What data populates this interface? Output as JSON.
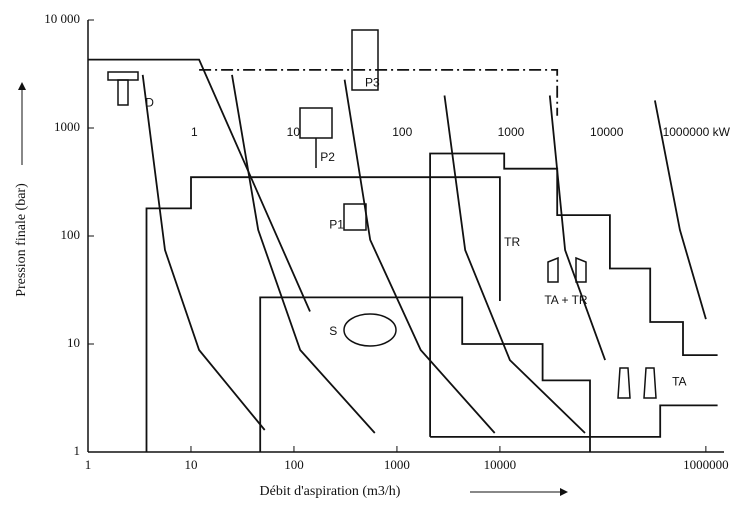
{
  "chart_data": {
    "type": "line",
    "log_x": true,
    "log_y": true,
    "x_label": "Débit d'aspiration (m3/h)",
    "y_label": "Pression finale (bar)",
    "xlim": [
      1,
      1500000
    ],
    "ylim": [
      1,
      10000
    ],
    "xticks": [
      1,
      10,
      100,
      1000,
      10000,
      1000000
    ],
    "yticks": [
      1,
      10,
      100,
      1000,
      {
        "value": 10000,
        "label": "10 000"
      }
    ],
    "color": "#111111",
    "series": [
      {
        "x": [
          1,
          12,
          143
        ],
        "values": [
          4300,
          4300,
          20
        ]
      },
      {
        "x": [
          12,
          36000,
          36000
        ],
        "values": [
          3450,
          3450,
          1300
        ],
        "style": "dashdot"
      },
      {
        "x": [
          3.7,
          3.7,
          10,
          10,
          10000,
          10000
        ],
        "values": [
          1,
          180,
          180,
          350,
          350,
          25
        ]
      },
      {
        "x": [
          47,
          47,
          4300,
          4300,
          26000,
          26000,
          75000,
          75000
        ],
        "values": [
          1,
          27,
          27,
          10,
          10,
          4.6,
          4.6,
          1
        ]
      },
      {
        "x": [
          2100,
          2100,
          11000,
          11000,
          36000,
          36000,
          117000,
          117000,
          288000,
          288000,
          600000,
          600000,
          1300000
        ],
        "values": [
          1.38,
          580,
          580,
          420,
          420,
          156,
          156,
          50,
          50,
          16,
          16,
          7.9,
          7.9
        ]
      },
      {
        "x": [
          2100,
          360000,
          360000,
          1300000
        ],
        "values": [
          1.38,
          1.38,
          2.7,
          2.7
        ]
      },
      {
        "x": [
          3.4,
          5.6,
          12,
          52
        ],
        "values": [
          3100,
          74,
          8.8,
          1.6
        ]
      },
      {
        "x": [
          25,
          45,
          115,
          610
        ],
        "values": [
          3100,
          114,
          8.8,
          1.5
        ]
      },
      {
        "x": [
          310,
          550,
          1700,
          8900
        ],
        "values": [
          2800,
          92,
          8.8,
          1.5
        ]
      },
      {
        "x": [
          2900,
          4600,
          12500,
          67000
        ],
        "values": [
          2000,
          74,
          7.1,
          1.5
        ]
      },
      {
        "x": [
          30500,
          43000,
          105000
        ],
        "values": [
          2000,
          74,
          7.1
        ]
      },
      {
        "x": [
          320000,
          560000,
          1000000
        ],
        "values": [
          1800,
          114,
          17
        ]
      }
    ],
    "annotations": [
      {
        "text": "D",
        "x": 3.6,
        "y": 1700
      },
      {
        "text": "P3",
        "x": 490,
        "y": 2600
      },
      {
        "text": "P2",
        "x": 180,
        "y": 530
      },
      {
        "text": "P1",
        "x": 220,
        "y": 125
      },
      {
        "text": "S",
        "x": 220,
        "y": 13
      },
      {
        "text": "TR",
        "x": 11000,
        "y": 86
      },
      {
        "text": "TA + TR",
        "x": 27000,
        "y": 25
      },
      {
        "text": "TA",
        "x": 470000,
        "y": 4.4
      },
      {
        "text": "1",
        "x": 10,
        "y": 900
      },
      {
        "text": "10",
        "x": 85,
        "y": 900
      },
      {
        "text": "100",
        "x": 900,
        "y": 900
      },
      {
        "text": "1000",
        "x": 9500,
        "y": 900
      },
      {
        "text": "10000",
        "x": 75000,
        "y": 900
      },
      {
        "text": "1000000 kW",
        "x": 380000,
        "y": 900
      }
    ]
  }
}
